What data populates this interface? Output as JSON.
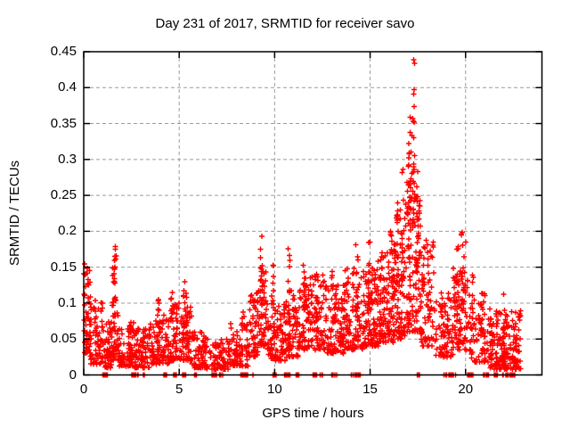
{
  "window": {
    "background": "#ffffff"
  },
  "chart_data": {
    "type": "scatter",
    "title": "Day 231 of 2017, SRMTID for receiver savo",
    "xlabel": "GPS time / hours",
    "ylabel": "SRMTID / TECUs",
    "xlim": [
      0,
      24
    ],
    "ylim": [
      0,
      0.45
    ],
    "xticks": [
      0,
      5,
      10,
      15,
      20
    ],
    "xtick_labels": [
      "0",
      "5",
      "10",
      "15",
      "20"
    ],
    "yticks": [
      0,
      0.05,
      0.1,
      0.15,
      0.2,
      0.25,
      0.3,
      0.35,
      0.4,
      0.45
    ],
    "ytick_labels": [
      "0",
      "0.05",
      "0.1",
      "0.15",
      "0.2",
      "0.25",
      "0.3",
      "0.35",
      "0.4",
      "0.45"
    ],
    "grid": {
      "show": true,
      "color": "#9c9c9c",
      "dash": [
        4,
        3
      ]
    },
    "legend": {
      "show": false
    },
    "axis_color": "#000000",
    "marker": {
      "shape": "plus",
      "color": "#ff0000",
      "size": 7,
      "stroke_width": 1.4
    },
    "points_model": {
      "note": "Dense scatter approximated from pixels: bands=[h0,h1,yMin,yMax,nEpochs], spikes=[hour,yBase,yTop,n] vertical columns, zeros=[h0,h1,n] clusters at y=0.",
      "seed": 20170231,
      "bands": [
        [
          0.0,
          0.35,
          0.03,
          0.155,
          40
        ],
        [
          0.35,
          1.0,
          0.015,
          0.105,
          55
        ],
        [
          1.0,
          1.45,
          0.01,
          0.075,
          35
        ],
        [
          1.45,
          1.85,
          0.02,
          0.1,
          32
        ],
        [
          1.85,
          2.65,
          0.012,
          0.075,
          70
        ],
        [
          2.65,
          3.45,
          0.01,
          0.065,
          65
        ],
        [
          3.45,
          4.45,
          0.015,
          0.085,
          75
        ],
        [
          4.45,
          5.0,
          0.02,
          0.1,
          42
        ],
        [
          5.0,
          5.65,
          0.02,
          0.095,
          48
        ],
        [
          5.65,
          6.45,
          0.01,
          0.06,
          55
        ],
        [
          6.45,
          7.65,
          0.008,
          0.05,
          65
        ],
        [
          7.65,
          8.65,
          0.012,
          0.075,
          60
        ],
        [
          8.65,
          9.25,
          0.025,
          0.12,
          48
        ],
        [
          9.25,
          9.6,
          0.04,
          0.15,
          30
        ],
        [
          9.6,
          10.55,
          0.02,
          0.1,
          75
        ],
        [
          10.55,
          11.25,
          0.025,
          0.12,
          55
        ],
        [
          11.25,
          12.65,
          0.035,
          0.14,
          110
        ],
        [
          12.65,
          13.65,
          0.03,
          0.125,
          80
        ],
        [
          13.65,
          14.65,
          0.035,
          0.15,
          80
        ],
        [
          14.65,
          15.45,
          0.04,
          0.16,
          82
        ],
        [
          15.45,
          16.25,
          0.045,
          0.175,
          82
        ],
        [
          16.25,
          16.85,
          0.05,
          0.23,
          70
        ],
        [
          16.85,
          17.65,
          0.06,
          0.27,
          85
        ],
        [
          17.65,
          18.35,
          0.04,
          0.19,
          62
        ],
        [
          18.35,
          19.35,
          0.025,
          0.115,
          62
        ],
        [
          19.35,
          20.15,
          0.035,
          0.155,
          58
        ],
        [
          20.15,
          21.3,
          0.018,
          0.115,
          65
        ],
        [
          21.3,
          22.9,
          0.008,
          0.09,
          155
        ]
      ],
      "spikes": [
        [
          1.55,
          0.08,
          0.155,
          12
        ],
        [
          1.65,
          0.09,
          0.18,
          14
        ],
        [
          3.9,
          0.06,
          0.11,
          8
        ],
        [
          4.6,
          0.06,
          0.12,
          8
        ],
        [
          5.25,
          0.06,
          0.133,
          10
        ],
        [
          5.4,
          0.05,
          0.12,
          8
        ],
        [
          8.35,
          0.05,
          0.09,
          6
        ],
        [
          9.3,
          0.1,
          0.205,
          14
        ],
        [
          9.45,
          0.08,
          0.15,
          8
        ],
        [
          9.9,
          0.08,
          0.155,
          8
        ],
        [
          10.75,
          0.08,
          0.185,
          10
        ],
        [
          11.55,
          0.08,
          0.165,
          10
        ],
        [
          12.2,
          0.08,
          0.145,
          8
        ],
        [
          13.0,
          0.07,
          0.15,
          8
        ],
        [
          14.3,
          0.08,
          0.19,
          10
        ],
        [
          14.95,
          0.09,
          0.21,
          10
        ],
        [
          16.1,
          0.1,
          0.2,
          8
        ],
        [
          16.45,
          0.12,
          0.25,
          10
        ],
        [
          16.7,
          0.13,
          0.3,
          10
        ],
        [
          17.0,
          0.15,
          0.33,
          12
        ],
        [
          17.15,
          0.18,
          0.36,
          10
        ],
        [
          17.3,
          0.2,
          0.445,
          22
        ],
        [
          17.45,
          0.15,
          0.3,
          10
        ],
        [
          17.6,
          0.12,
          0.25,
          8
        ],
        [
          19.6,
          0.08,
          0.18,
          8
        ],
        [
          19.8,
          0.09,
          0.21,
          10
        ],
        [
          19.95,
          0.08,
          0.19,
          8
        ],
        [
          20.4,
          0.06,
          0.145,
          6
        ],
        [
          20.85,
          0.05,
          0.14,
          6
        ],
        [
          22.0,
          0.04,
          0.115,
          6
        ]
      ],
      "zeros": [
        [
          1.0,
          1.25,
          14
        ],
        [
          2.5,
          2.95,
          16
        ],
        [
          3.1,
          3.2,
          6
        ],
        [
          4.2,
          4.35,
          8
        ],
        [
          4.7,
          4.85,
          8
        ],
        [
          5.1,
          5.4,
          12
        ],
        [
          5.8,
          5.9,
          6
        ],
        [
          6.7,
          6.95,
          10
        ],
        [
          7.1,
          7.3,
          8
        ],
        [
          8.2,
          8.6,
          14
        ],
        [
          8.8,
          8.9,
          5
        ],
        [
          9.9,
          10.15,
          10
        ],
        [
          10.5,
          10.8,
          10
        ],
        [
          11.1,
          11.3,
          8
        ],
        [
          12.0,
          12.5,
          14
        ],
        [
          13.0,
          13.3,
          8
        ],
        [
          14.0,
          14.5,
          14
        ],
        [
          17.45,
          17.6,
          8
        ],
        [
          18.85,
          19.5,
          18
        ],
        [
          20.1,
          20.4,
          10
        ],
        [
          20.9,
          21.2,
          8
        ],
        [
          21.5,
          21.7,
          8
        ],
        [
          21.9,
          22.6,
          20
        ]
      ]
    }
  }
}
